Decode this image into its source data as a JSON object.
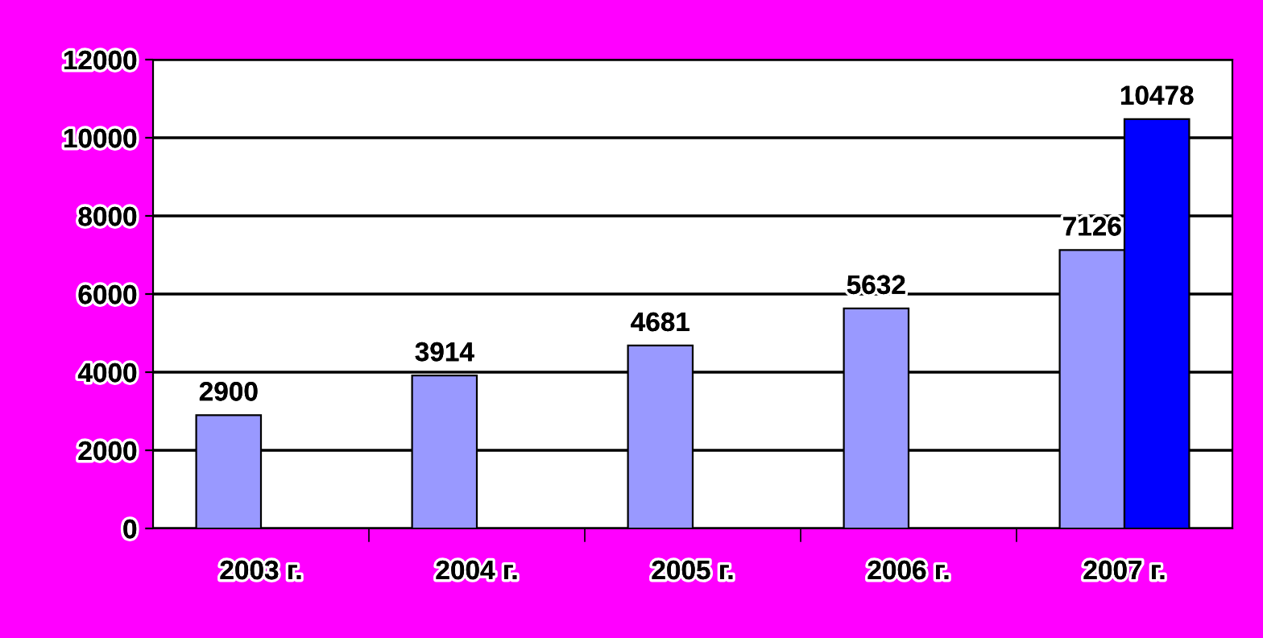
{
  "chart_data": {
    "type": "bar",
    "categories": [
      "2003 г.",
      "2004 г.",
      "2005 г.",
      "2006 г.",
      "2007 г."
    ],
    "series": [
      {
        "color": "#9999ff",
        "values": [
          2900,
          3914,
          4681,
          5632,
          7126
        ]
      },
      {
        "color": "#0000ff",
        "values": [
          null,
          null,
          null,
          null,
          10478
        ]
      }
    ],
    "ylim": [
      0,
      12000
    ],
    "yticks": [
      0,
      2000,
      4000,
      6000,
      8000,
      10000,
      12000
    ],
    "grid": "y",
    "data_labels": true
  }
}
